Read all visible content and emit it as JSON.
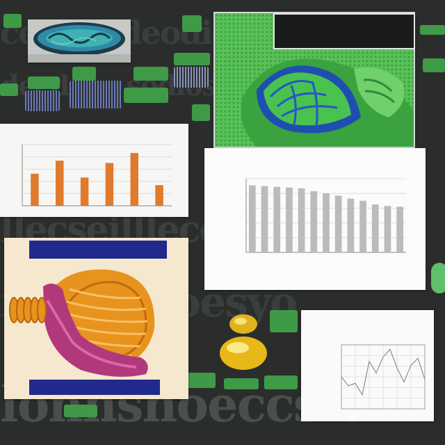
{
  "colors": {
    "background": "#2b2d2c",
    "bar_orange": "#e07a2c",
    "bar_gray": "#b9bbbd",
    "banner_navy": "#1f2a8c",
    "leaf_green": "#3fb44a",
    "line_gray": "#8a8f95"
  },
  "panels": {
    "leaf_image": {
      "caption": "",
      "subcaption": ""
    },
    "illustration": {
      "top_label": "",
      "top_label_right": "",
      "bottom_label": "",
      "bottom_label_right": ""
    }
  },
  "chart_data": [
    {
      "type": "bar",
      "title": "",
      "subtitle": "",
      "categories": [
        "",
        "",
        "",
        "",
        "",
        ""
      ],
      "values": [
        4.2,
        5.9,
        3.7,
        5.6,
        6.9,
        2.7
      ],
      "ylim": [
        0,
        8
      ],
      "grid": true,
      "color": "#e07a2c"
    },
    {
      "type": "bar",
      "title": "",
      "subtitle": "",
      "categories": [
        "",
        "",
        "",
        "",
        "",
        "",
        "",
        "",
        "",
        "",
        "",
        "",
        ""
      ],
      "values": [
        9.1,
        9.0,
        8.9,
        8.8,
        8.7,
        8.3,
        8.0,
        7.7,
        7.3,
        7.0,
        6.5,
        6.3,
        6.2
      ],
      "ylim": [
        0,
        10
      ],
      "grid": true,
      "color": "#b9bbbd"
    },
    {
      "type": "line",
      "title": "",
      "subtitle": "",
      "x": [
        0,
        1,
        2,
        3,
        4,
        5,
        6,
        7,
        8,
        9,
        10,
        11,
        12
      ],
      "y": [
        5.0,
        3.6,
        4.0,
        2.2,
        7.4,
        5.6,
        8.1,
        9.3,
        6.4,
        4.2,
        6.8,
        7.9,
        4.6
      ],
      "ylim": [
        0,
        10
      ],
      "grid": true,
      "color": "#8a8f95"
    }
  ]
}
